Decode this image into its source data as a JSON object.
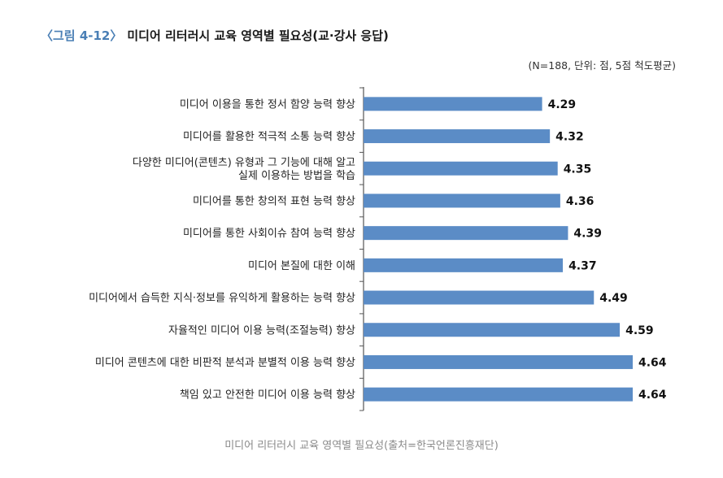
{
  "figure": {
    "number": "〈그림 4-12〉",
    "title": "미디어 리터러시 교육 영역별 필요성(교·강사 응답)",
    "units": "(N=188, 단위: 점, 5점 척도평균)",
    "caption": "미디어 리터러시 교육 영역별 필요성(출처=한국언론진흥재단)"
  },
  "chart_data": {
    "type": "bar",
    "orientation": "horizontal",
    "categories": [
      [
        "미디어 이용을 통한 정서 함양 능력 향상"
      ],
      [
        "미디어를 활용한 적극적 소통 능력 향상"
      ],
      [
        "다양한 미디어(콘텐츠) 유형과 그 기능에 대해 알고",
        "실제 이용하는 방법을 학습"
      ],
      [
        "미디어를 통한 창의적 표현 능력 향상"
      ],
      [
        "미디어를 통한 사회이슈 참여 능력 향상"
      ],
      [
        "미디어 본질에 대한 이해"
      ],
      [
        "미디어에서 습득한 지식·정보를 유익하게 활용하는 능력 향상"
      ],
      [
        "자율적인 미디어 이용 능력(조절능력) 향상"
      ],
      [
        "미디어 콘텐츠에 대한 비판적 분석과 분별적 이용 능력 향상"
      ],
      [
        "책임 있고 안전한 미디어 이용 능력 향상"
      ]
    ],
    "values": [
      4.29,
      4.32,
      4.35,
      4.36,
      4.39,
      4.37,
      4.49,
      4.59,
      4.64,
      4.64
    ],
    "value_labels": [
      "4.29",
      "4.32",
      "4.35",
      "4.36",
      "4.39",
      "4.37",
      "4.49",
      "4.59",
      "4.64",
      "4.64"
    ],
    "xlim": [
      3.6,
      4.64
    ],
    "bar_color": "#5b8cc6",
    "axis_color": "#555555",
    "grid": false,
    "legend": false
  }
}
